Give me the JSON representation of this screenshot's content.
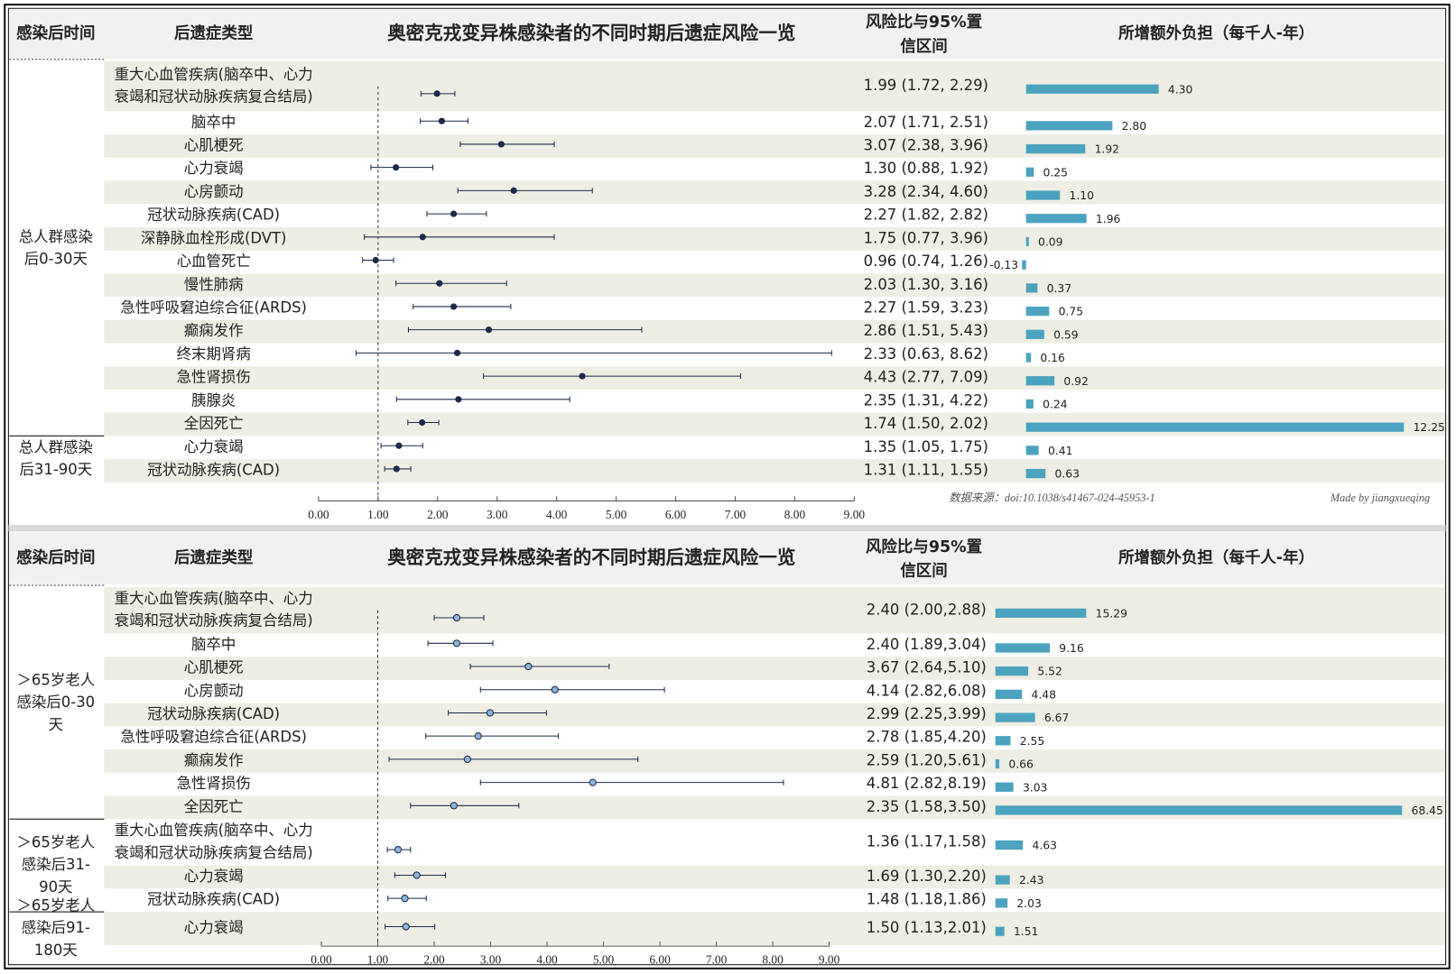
{
  "chart_data": [
    {
      "type": "forest",
      "title": "奥密克戎变异株感染者的不同时期后遗症风险一览",
      "headers": {
        "time": "感染后时间",
        "type": "后遗症类型",
        "ci": [
          "风险比与95%置",
          "信区间"
        ],
        "burden": "所增额外负担（每千人-年）"
      },
      "marker_color": "#1b2a4a",
      "bar_color": "#4ba3bf",
      "ref_line": 1,
      "xlim": [
        0,
        9
      ],
      "xticks": [
        {
          "value": 0,
          "label": "0.00"
        },
        {
          "value": 1,
          "label": "1.00"
        },
        {
          "value": 2,
          "label": "2.00"
        },
        {
          "value": 3,
          "label": "3.00"
        },
        {
          "value": 4,
          "label": "4.00"
        },
        {
          "value": 5,
          "label": "5.00"
        },
        {
          "value": 6,
          "label": "6.00"
        },
        {
          "value": 7,
          "label": "7.00"
        },
        {
          "value": 8,
          "label": "8.00"
        },
        {
          "value": 9,
          "label": "9.00"
        }
      ],
      "source": "数据来源：doi:10.1038/s41467-024-45953-1",
      "credit": "Made by jiangxueqing",
      "groups": [
        {
          "label": [
            "总人群感染",
            "后0-30天"
          ],
          "rows": [
            {
              "name": [
                "重大心血管疾病(脑卒中、心力",
                "衰竭和冠状动脉疾病复合结局)"
              ],
              "hr": 1.99,
              "lo": 1.72,
              "hi": 2.29,
              "ci_label": "1.99 (1.72, 2.29)",
              "burden": 4.3,
              "burden_label": "4.30"
            },
            {
              "name": [
                "脑卒中"
              ],
              "hr": 2.07,
              "lo": 1.71,
              "hi": 2.51,
              "ci_label": "2.07 (1.71, 2.51)",
              "burden": 2.8,
              "burden_label": "2.80"
            },
            {
              "name": [
                "心肌梗死"
              ],
              "hr": 3.07,
              "lo": 2.38,
              "hi": 3.96,
              "ci_label": "3.07 (2.38, 3.96)",
              "burden": 1.92,
              "burden_label": "1.92"
            },
            {
              "name": [
                "心力衰竭"
              ],
              "hr": 1.3,
              "lo": 0.88,
              "hi": 1.92,
              "ci_label": "1.30 (0.88, 1.92)",
              "burden": 0.25,
              "burden_label": "0.25"
            },
            {
              "name": [
                "心房颤动"
              ],
              "hr": 3.28,
              "lo": 2.34,
              "hi": 4.6,
              "ci_label": "3.28 (2.34, 4.60)",
              "burden": 1.1,
              "burden_label": "1.10"
            },
            {
              "name": [
                "冠状动脉疾病(CAD)"
              ],
              "hr": 2.27,
              "lo": 1.82,
              "hi": 2.82,
              "ci_label": "2.27 (1.82, 2.82)",
              "burden": 1.96,
              "burden_label": "1.96"
            },
            {
              "name": [
                "深静脉血栓形成(DVT)"
              ],
              "hr": 1.75,
              "lo": 0.77,
              "hi": 3.96,
              "ci_label": "1.75 (0.77, 3.96)",
              "burden": 0.09,
              "burden_label": "0.09"
            },
            {
              "name": [
                "心血管死亡"
              ],
              "hr": 0.96,
              "lo": 0.74,
              "hi": 1.26,
              "ci_label": "0.96 (0.74, 1.26)",
              "burden": -0.13,
              "burden_label": "-0.13"
            },
            {
              "name": [
                "慢性肺病"
              ],
              "hr": 2.03,
              "lo": 1.3,
              "hi": 3.16,
              "ci_label": "2.03 (1.30, 3.16)",
              "burden": 0.37,
              "burden_label": "0.37"
            },
            {
              "name": [
                "急性呼吸窘迫综合征(ARDS)"
              ],
              "hr": 2.27,
              "lo": 1.59,
              "hi": 3.23,
              "ci_label": "2.27 (1.59, 3.23)",
              "burden": 0.75,
              "burden_label": "0.75"
            },
            {
              "name": [
                "癫痫发作"
              ],
              "hr": 2.86,
              "lo": 1.51,
              "hi": 5.43,
              "ci_label": "2.86 (1.51, 5.43)",
              "burden": 0.59,
              "burden_label": "0.59"
            },
            {
              "name": [
                "终末期肾病"
              ],
              "hr": 2.33,
              "lo": 0.63,
              "hi": 8.62,
              "ci_label": "2.33 (0.63, 8.62)",
              "burden": 0.16,
              "burden_label": "0.16"
            },
            {
              "name": [
                "急性肾损伤"
              ],
              "hr": 4.43,
              "lo": 2.77,
              "hi": 7.09,
              "ci_label": "4.43 (2.77, 7.09)",
              "burden": 0.92,
              "burden_label": "0.92"
            },
            {
              "name": [
                "胰腺炎"
              ],
              "hr": 2.35,
              "lo": 1.31,
              "hi": 4.22,
              "ci_label": "2.35 (1.31, 4.22)",
              "burden": 0.24,
              "burden_label": "0.24"
            },
            {
              "name": [
                "全因死亡"
              ],
              "hr": 1.74,
              "lo": 1.5,
              "hi": 2.02,
              "ci_label": "1.74 (1.50, 2.02)",
              "burden": 12.25,
              "burden_label": "12.25"
            }
          ]
        },
        {
          "label": [
            "总人群感染",
            "后31-90天"
          ],
          "rows": [
            {
              "name": [
                "心力衰竭"
              ],
              "hr": 1.35,
              "lo": 1.05,
              "hi": 1.75,
              "ci_label": "1.35 (1.05, 1.75)",
              "burden": 0.41,
              "burden_label": "0.41"
            },
            {
              "name": [
                "冠状动脉疾病(CAD)"
              ],
              "hr": 1.31,
              "lo": 1.11,
              "hi": 1.55,
              "ci_label": "1.31 (1.11, 1.55)",
              "burden": 0.63,
              "burden_label": "0.63"
            }
          ]
        }
      ]
    },
    {
      "type": "forest",
      "title": "奥密克戎变异株感染者的不同时期后遗症风险一览",
      "headers": {
        "time": "感染后时间",
        "type": "后遗症类型",
        "ci": [
          "风险比与95%置",
          "信区间"
        ],
        "burden": "所增额外负担（每千人-年）"
      },
      "marker_color": "#8fb3d9",
      "bar_color": "#4ba3bf",
      "ref_line": 1,
      "xlim": [
        0,
        9
      ],
      "xticks": [
        {
          "value": 0,
          "label": "0.00"
        },
        {
          "value": 1,
          "label": "1.00"
        },
        {
          "value": 2,
          "label": "2.00"
        },
        {
          "value": 3,
          "label": "3.00"
        },
        {
          "value": 4,
          "label": "4.00"
        },
        {
          "value": 5,
          "label": "5.00"
        },
        {
          "value": 6,
          "label": "6.00"
        },
        {
          "value": 7,
          "label": "7.00"
        },
        {
          "value": 8,
          "label": "8.00"
        },
        {
          "value": 9,
          "label": "9.00"
        }
      ],
      "groups": [
        {
          "label": [
            "＞65岁老人",
            "感染后0-30",
            "天"
          ],
          "rows": [
            {
              "name": [
                "重大心血管疾病(脑卒中、心力",
                "衰竭和冠状动脉疾病复合结局)"
              ],
              "hr": 2.4,
              "lo": 2.0,
              "hi": 2.88,
              "ci_label": "2.40 (2.00,2.88)",
              "burden": 15.29,
              "burden_label": "15.29"
            },
            {
              "name": [
                "脑卒中"
              ],
              "hr": 2.4,
              "lo": 1.89,
              "hi": 3.04,
              "ci_label": "2.40 (1.89,3.04)",
              "burden": 9.16,
              "burden_label": "9.16"
            },
            {
              "name": [
                "心肌梗死"
              ],
              "hr": 3.67,
              "lo": 2.64,
              "hi": 5.1,
              "ci_label": "3.67 (2.64,5.10)",
              "burden": 5.52,
              "burden_label": "5.52"
            },
            {
              "name": [
                "心房颤动"
              ],
              "hr": 4.14,
              "lo": 2.82,
              "hi": 6.08,
              "ci_label": "4.14 (2.82,6.08)",
              "burden": 4.48,
              "burden_label": "4.48"
            },
            {
              "name": [
                "冠状动脉疾病(CAD)"
              ],
              "hr": 2.99,
              "lo": 2.25,
              "hi": 3.99,
              "ci_label": "2.99 (2.25,3.99)",
              "burden": 6.67,
              "burden_label": "6.67"
            },
            {
              "name": [
                "急性呼吸窘迫综合征(ARDS)"
              ],
              "hr": 2.78,
              "lo": 1.85,
              "hi": 4.2,
              "ci_label": "2.78 (1.85,4.20)",
              "burden": 2.55,
              "burden_label": "2.55"
            },
            {
              "name": [
                "癫痫发作"
              ],
              "hr": 2.59,
              "lo": 1.2,
              "hi": 5.61,
              "ci_label": "2.59 (1.20,5.61)",
              "burden": 0.66,
              "burden_label": "0.66"
            },
            {
              "name": [
                "急性肾损伤"
              ],
              "hr": 4.81,
              "lo": 2.82,
              "hi": 8.19,
              "ci_label": "4.81 (2.82,8.19)",
              "burden": 3.03,
              "burden_label": "3.03"
            },
            {
              "name": [
                "全因死亡"
              ],
              "hr": 2.35,
              "lo": 1.58,
              "hi": 3.5,
              "ci_label": "2.35 (1.58,3.50)",
              "burden": 68.45,
              "burden_label": "68.45"
            }
          ]
        },
        {
          "label": [
            "＞65岁老人",
            "感染后31-",
            "90天"
          ],
          "rows": [
            {
              "name": [
                "重大心血管疾病(脑卒中、心力",
                "衰竭和冠状动脉疾病复合结局)"
              ],
              "hr": 1.36,
              "lo": 1.17,
              "hi": 1.58,
              "ci_label": "1.36 (1.17,1.58)",
              "burden": 4.63,
              "burden_label": "4.63"
            },
            {
              "name": [
                "心力衰竭"
              ],
              "hr": 1.69,
              "lo": 1.3,
              "hi": 2.2,
              "ci_label": "1.69 (1.30,2.20)",
              "burden": 2.43,
              "burden_label": "2.43"
            },
            {
              "name": [
                "冠状动脉疾病(CAD)"
              ],
              "hr": 1.48,
              "lo": 1.18,
              "hi": 1.86,
              "ci_label": "1.48 (1.18,1.86)",
              "burden": 2.03,
              "burden_label": "2.03"
            }
          ]
        },
        {
          "label": [
            "＞65岁老人",
            "感染后91-",
            "180天"
          ],
          "rows": [
            {
              "name": [
                "心力衰竭"
              ],
              "hr": 1.5,
              "lo": 1.13,
              "hi": 2.01,
              "ci_label": "1.50 (1.13,2.01)",
              "burden": 1.51,
              "burden_label": "1.51"
            }
          ]
        }
      ]
    }
  ]
}
